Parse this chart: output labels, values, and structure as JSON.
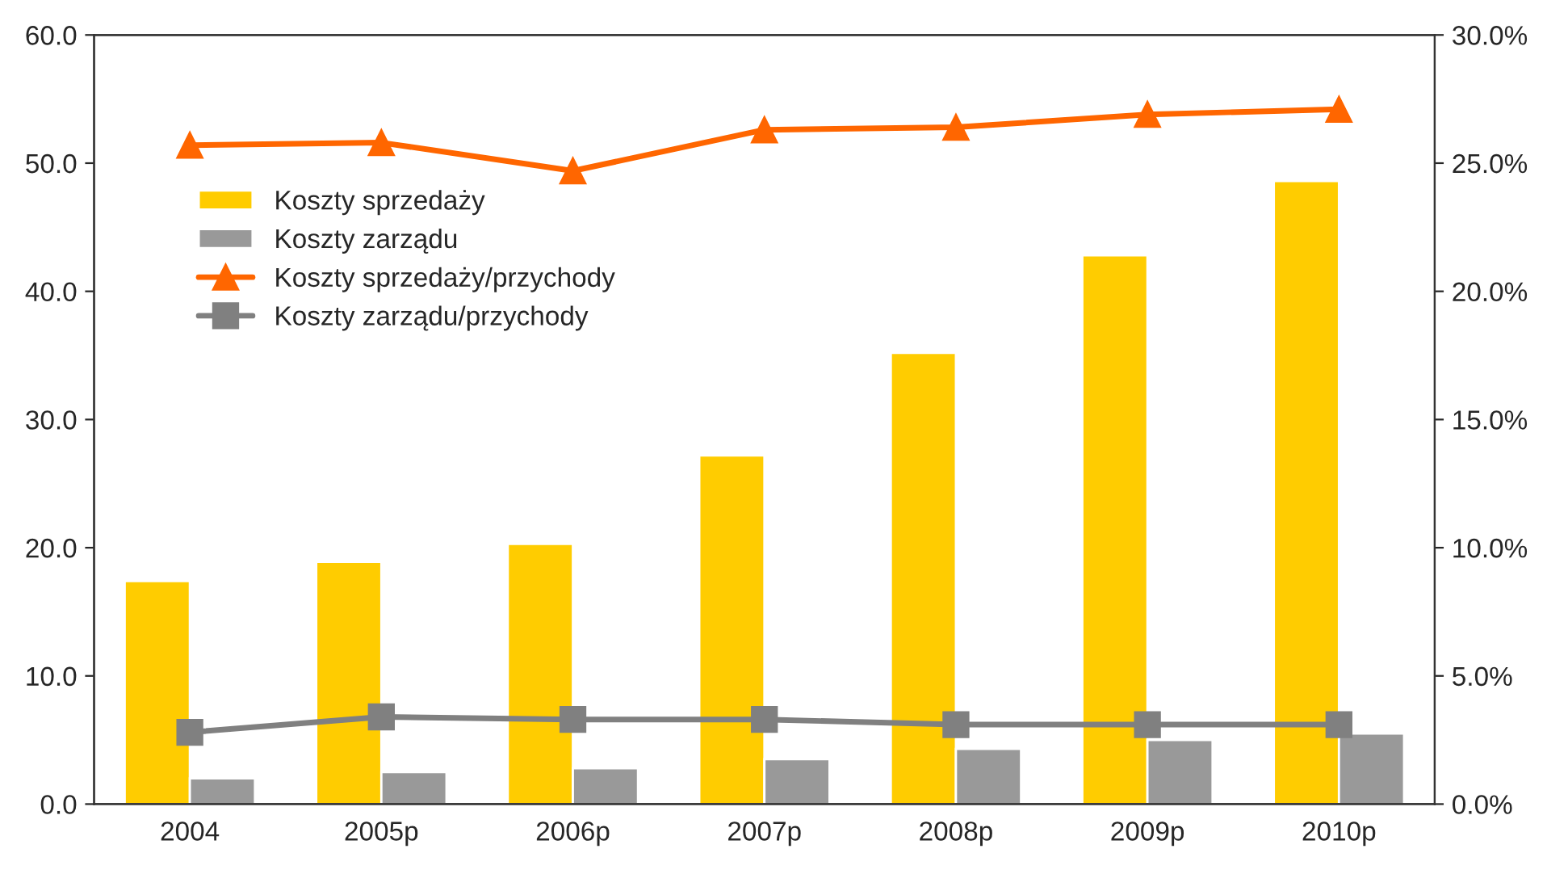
{
  "chart_data": {
    "type": "bar",
    "categories": [
      "2004",
      "2005p",
      "2006p",
      "2007p",
      "2008p",
      "2009p",
      "2010p"
    ],
    "series": [
      {
        "name": "Koszty sprzedaży",
        "color": "#ffcc00",
        "values": [
          17.4,
          18.9,
          20.3,
          27.2,
          35.2,
          42.8,
          48.6
        ]
      },
      {
        "name": "Koszty zarządu",
        "color": "#999999",
        "values": [
          2.0,
          2.5,
          2.8,
          3.5,
          4.3,
          5.0,
          5.5
        ]
      },
      {
        "name": "Koszty sprzedaży/przychody",
        "type": "line",
        "axis": "y2",
        "marker": "triangle",
        "color": "#ff6600",
        "values": [
          25.7,
          25.8,
          24.7,
          26.3,
          26.4,
          26.9,
          27.1
        ]
      },
      {
        "name": "Koszty zarządu/przychody",
        "type": "line",
        "axis": "y2",
        "marker": "square",
        "color": "#808080",
        "values": [
          2.8,
          3.4,
          3.3,
          3.3,
          3.1,
          3.1,
          3.1
        ]
      }
    ],
    "ylim": [
      0,
      60
    ],
    "yticks": [
      {
        "value": 0,
        "label": "0.0"
      },
      {
        "value": 10,
        "label": "10.0"
      },
      {
        "value": 20,
        "label": "20.0"
      },
      {
        "value": 30,
        "label": "30.0"
      },
      {
        "value": 40,
        "label": "40.0"
      },
      {
        "value": 50,
        "label": "50.0"
      },
      {
        "value": 60,
        "label": "60.0"
      }
    ],
    "y2lim": [
      0,
      30
    ],
    "y2ticks": [
      {
        "value": 0,
        "label": "0.0%"
      },
      {
        "value": 5,
        "label": "5.0%"
      },
      {
        "value": 10,
        "label": "10.0%"
      },
      {
        "value": 15,
        "label": "15.0%"
      },
      {
        "value": 20,
        "label": "20.0%"
      },
      {
        "value": 25,
        "label": "25.0%"
      },
      {
        "value": 30,
        "label": "30.0%"
      }
    ],
    "grid": false,
    "legend": "top left"
  }
}
